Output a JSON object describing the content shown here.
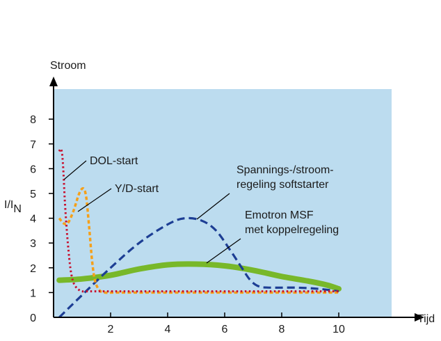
{
  "chart_data": {
    "type": "line",
    "xlabel": "Tijd",
    "ylabel": "Stroom",
    "ylabel_ratio": {
      "base": "I/I",
      "sub": "N"
    },
    "xlim": [
      0,
      11.5
    ],
    "ylim": [
      0,
      9.0
    ],
    "x_ticks": [
      2,
      4,
      6,
      8,
      10
    ],
    "y_ticks": [
      0,
      1,
      2,
      3,
      4,
      5,
      6,
      7,
      8
    ],
    "grid": false,
    "colors": {
      "plot_bg": "#bcdcef",
      "dol": "#c8102e",
      "yd": "#f5a01a",
      "soft": "#1d3e94",
      "msf": "#78b82a",
      "axis": "#000000"
    },
    "series": [
      {
        "key": "dol",
        "name": "DOL-start",
        "x": [
          0.2,
          0.25,
          0.3,
          0.35,
          0.4,
          0.5,
          0.6,
          0.7,
          0.8,
          0.9,
          1.0,
          1.2,
          1.6,
          2.0,
          4.0,
          6.0,
          8.0,
          10.0
        ],
        "y": [
          6.7,
          6.8,
          6.6,
          5.8,
          4.6,
          3.0,
          1.9,
          1.4,
          1.2,
          1.1,
          1.05,
          1.05,
          1.05,
          1.05,
          1.05,
          1.05,
          1.05,
          1.05
        ]
      },
      {
        "key": "yd",
        "name": "Y/D-start",
        "x": [
          0.2,
          0.35,
          0.5,
          0.7,
          0.9,
          1.05,
          1.15,
          1.25,
          1.35,
          1.45,
          1.6,
          1.8,
          2.2,
          4.0,
          6.0,
          8.0,
          10.0
        ],
        "y": [
          4.0,
          3.8,
          3.8,
          4.3,
          5.0,
          5.2,
          4.8,
          3.6,
          2.3,
          1.5,
          1.1,
          1.0,
          1.0,
          1.0,
          1.0,
          1.0,
          1.0
        ]
      },
      {
        "key": "soft",
        "name": "Spannings-/stroom-\nregeling softstarter",
        "x": [
          0.2,
          1.0,
          2.0,
          3.0,
          4.0,
          4.6,
          5.2,
          5.7,
          6.2,
          6.6,
          6.9,
          7.2,
          7.6,
          8.5,
          9.3,
          10.0
        ],
        "y": [
          0.0,
          0.9,
          2.0,
          3.0,
          3.75,
          4.0,
          3.9,
          3.5,
          2.7,
          2.0,
          1.5,
          1.25,
          1.2,
          1.2,
          1.15,
          1.05
        ]
      },
      {
        "key": "msf",
        "name": "Emotron MSF\nmet koppelregeling",
        "x": [
          0.2,
          1.0,
          2.0,
          3.0,
          4.0,
          5.0,
          6.0,
          7.0,
          8.0,
          9.0,
          9.6,
          10.0
        ],
        "y": [
          1.5,
          1.55,
          1.7,
          1.95,
          2.12,
          2.15,
          2.08,
          1.9,
          1.65,
          1.45,
          1.3,
          1.15
        ]
      }
    ]
  }
}
